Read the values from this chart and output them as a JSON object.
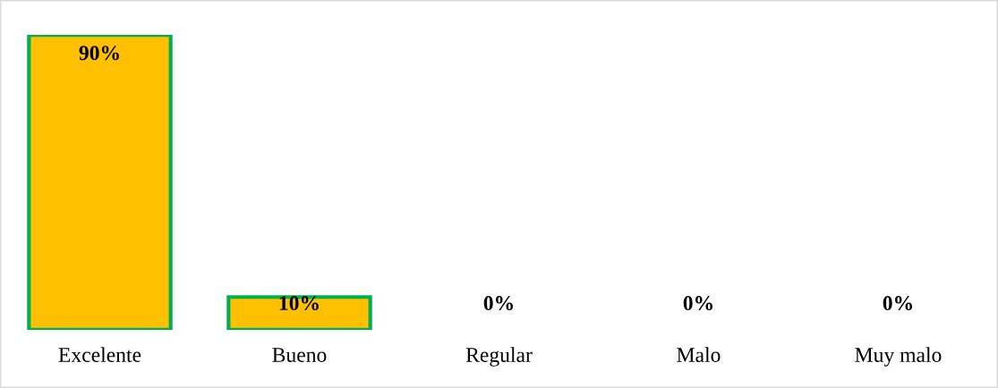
{
  "chart_data": {
    "type": "bar",
    "categories": [
      "Excelente",
      "Bueno",
      "Regular",
      "Malo",
      "Muy malo"
    ],
    "values": [
      90,
      10,
      0,
      0,
      0
    ],
    "value_labels": [
      "90%",
      "10%",
      "0%",
      "0%",
      "0%"
    ],
    "color": "#ffc000",
    "grid": false,
    "legend": false
  }
}
